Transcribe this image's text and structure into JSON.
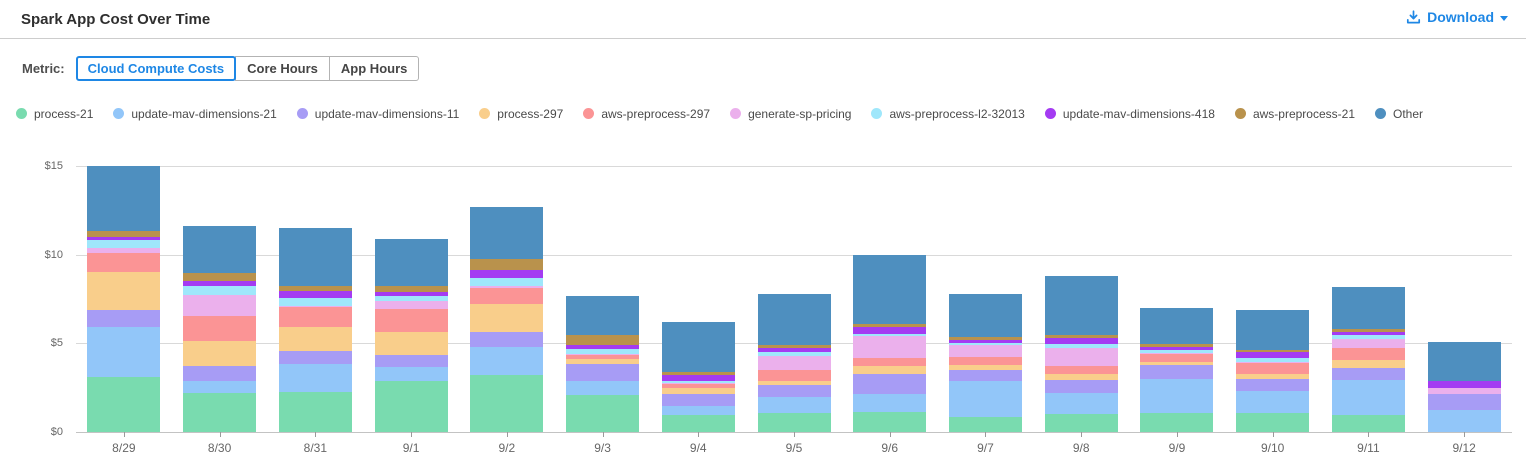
{
  "header": {
    "title": "Spark App Cost Over Time",
    "download_label": "Download"
  },
  "metric": {
    "label": "Metric:",
    "tabs": [
      {
        "label": "Cloud Compute Costs",
        "selected": true
      },
      {
        "label": "Core Hours",
        "selected": false
      },
      {
        "label": "App Hours",
        "selected": false
      }
    ]
  },
  "colors": {
    "accent": "#1e87e5",
    "grid": "#d9d9d9",
    "axis_text": "#666666"
  },
  "chart_data": {
    "type": "bar",
    "stacked": true,
    "title": "Spark App Cost Over Time",
    "xlabel": "",
    "ylabel": "",
    "ylim": [
      0,
      15
    ],
    "y_tick_values": [
      0,
      5,
      10,
      15
    ],
    "y_tick_labels": [
      "$0",
      "$5",
      "$10",
      "$15"
    ],
    "grid": true,
    "legend_position": "top",
    "categories": [
      "8/29",
      "8/30",
      "8/31",
      "9/1",
      "9/2",
      "9/3",
      "9/4",
      "9/5",
      "9/6",
      "9/7",
      "9/8",
      "9/9",
      "9/10",
      "9/11",
      "9/12"
    ],
    "series": [
      {
        "name": "process-21",
        "color": "#79dbaf",
        "values": [
          3.1,
          2.2,
          2.25,
          2.9,
          3.2,
          2.1,
          0.95,
          1.1,
          1.15,
          0.85,
          1.0,
          1.1,
          1.1,
          0.95,
          0.0
        ]
      },
      {
        "name": "update-mav-dimensions-21",
        "color": "#92c6f9",
        "values": [
          2.8,
          0.7,
          1.6,
          0.75,
          1.6,
          0.8,
          0.5,
          0.9,
          1.0,
          2.05,
          1.2,
          1.9,
          1.2,
          2.0,
          1.25
        ]
      },
      {
        "name": "update-mav-dimensions-11",
        "color": "#a79cf5",
        "values": [
          1.0,
          0.85,
          0.7,
          0.7,
          0.85,
          0.95,
          0.7,
          0.65,
          1.1,
          0.6,
          0.75,
          0.8,
          0.7,
          0.65,
          0.9
        ]
      },
      {
        "name": "process-297",
        "color": "#f9ce8b",
        "values": [
          2.1,
          1.4,
          1.35,
          1.3,
          1.55,
          0.25,
          0.35,
          0.25,
          0.45,
          0.3,
          0.3,
          0.15,
          0.3,
          0.45,
          0.0
        ]
      },
      {
        "name": "aws-preprocess-297",
        "color": "#fb9495",
        "values": [
          1.1,
          1.4,
          1.15,
          1.3,
          0.95,
          0.25,
          0.2,
          0.6,
          0.45,
          0.45,
          0.45,
          0.45,
          0.6,
          0.7,
          0.0
        ]
      },
      {
        "name": "generate-sp-pricing",
        "color": "#ebb0ec",
        "values": [
          0.3,
          1.2,
          0.05,
          0.45,
          0.1,
          0.05,
          0.05,
          0.8,
          1.25,
          0.65,
          1.05,
          0.05,
          0.05,
          0.5,
          0.35
        ]
      },
      {
        "name": "aws-preprocess-l2-32013",
        "color": "#9fe7fb",
        "values": [
          0.45,
          0.5,
          0.45,
          0.3,
          0.45,
          0.3,
          0.15,
          0.2,
          0.15,
          0.1,
          0.2,
          0.15,
          0.2,
          0.25,
          0.0
        ]
      },
      {
        "name": "update-mav-dimensions-418",
        "color": "#a43bf2",
        "values": [
          0.15,
          0.25,
          0.4,
          0.2,
          0.45,
          0.2,
          0.3,
          0.25,
          0.4,
          0.2,
          0.35,
          0.2,
          0.35,
          0.15,
          0.4
        ]
      },
      {
        "name": "aws-preprocess-21",
        "color": "#b9924c",
        "values": [
          0.35,
          0.45,
          0.3,
          0.35,
          0.6,
          0.55,
          0.2,
          0.15,
          0.15,
          0.15,
          0.2,
          0.15,
          0.15,
          0.15,
          0.0
        ]
      },
      {
        "name": "Other",
        "color": "#4e8fbf",
        "values": [
          3.65,
          2.65,
          3.25,
          2.65,
          2.95,
          2.25,
          2.8,
          2.9,
          3.9,
          2.45,
          3.3,
          2.05,
          2.25,
          2.4,
          2.2
        ]
      }
    ]
  }
}
